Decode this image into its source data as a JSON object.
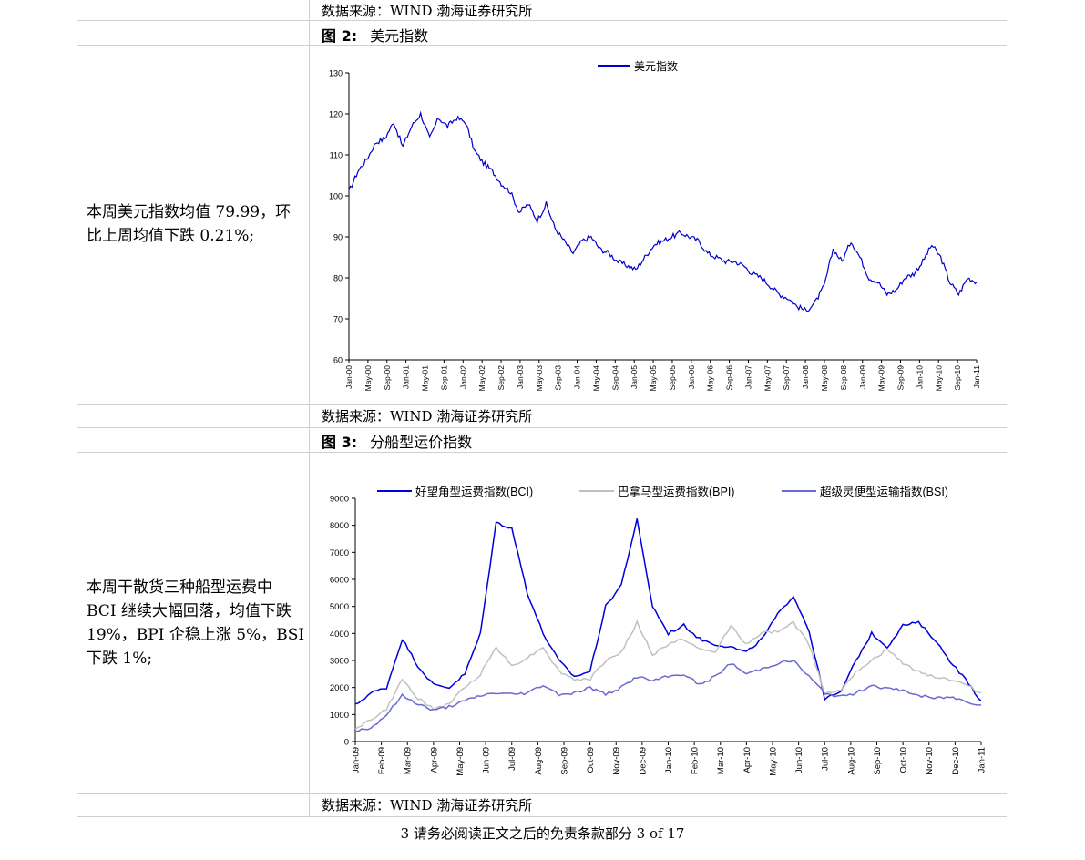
{
  "source_text": "数据来源：WIND 渤海证券研究所",
  "fig2": {
    "num": "图 2:",
    "title": "美元指数",
    "comment": "本周美元指数均值 79.99，环比上周均值下跌 0.21%;"
  },
  "fig3": {
    "num": "图 3:",
    "title": "分船型运价指数",
    "comment": "本周干散货三种船型运费中 BCI 继续大幅回落，均值下跌 19%，BPI 企稳上涨 5%，BSI 下跌 1%;"
  },
  "footer": "3 请务必阅读正文之后的免责条款部分     3 of 17",
  "chart_data": [
    {
      "type": "line",
      "series_color": "#0000cc",
      "ylim": [
        60,
        130
      ],
      "yticks": [
        60,
        70,
        80,
        90,
        100,
        110,
        120,
        130
      ],
      "xticks": [
        "Jan-00",
        "May-00",
        "Sep-00",
        "Jan-01",
        "May-01",
        "Sep-01",
        "Jan-02",
        "May-02",
        "Sep-02",
        "Jan-03",
        "May-03",
        "Sep-03",
        "Jan-04",
        "May-04",
        "Sep-04",
        "Jan-05",
        "May-05",
        "Sep-05",
        "Jan-06",
        "May-06",
        "Sep-06",
        "Jan-07",
        "May-07",
        "Sep-07",
        "Jan-08",
        "May-08",
        "Sep-08",
        "Jan-09",
        "May-09",
        "Sep-09",
        "Jan-10",
        "May-10",
        "Sep-10",
        "Jan-11"
      ],
      "series": [
        {
          "name": "美元指数",
          "color": "#0000cc",
          "values": [
            101,
            106,
            109,
            113,
            114,
            118,
            112,
            117,
            120,
            114,
            119,
            117,
            119,
            118,
            111,
            108,
            106,
            103,
            101,
            96,
            98,
            94,
            98,
            92,
            89,
            86,
            89,
            90,
            87,
            86,
            84,
            83,
            82,
            85,
            88,
            89,
            90,
            91,
            90,
            89,
            86,
            85,
            84,
            84,
            83,
            81,
            80,
            78,
            76,
            75,
            73,
            72,
            74,
            78,
            87,
            84,
            89,
            85,
            80,
            79,
            76,
            77,
            80,
            81,
            84,
            88,
            85,
            79,
            76,
            80,
            79
          ]
        }
      ]
    },
    {
      "type": "line",
      "ylim": [
        0,
        9000
      ],
      "yticks": [
        0,
        1000,
        2000,
        3000,
        4000,
        5000,
        6000,
        7000,
        8000,
        9000
      ],
      "xticks": [
        "Jan-09",
        "Feb-09",
        "Mar-09",
        "Apr-09",
        "May-09",
        "Jun-09",
        "Jul-09",
        "Aug-09",
        "Sep-09",
        "Oct-09",
        "Nov-09",
        "Dec-09",
        "Jan-10",
        "Feb-10",
        "Mar-10",
        "Apr-10",
        "May-10",
        "Jun-10",
        "Jul-10",
        "Aug-10",
        "Sep-10",
        "Oct-10",
        "Nov-10",
        "Dec-10",
        "Jan-11"
      ],
      "series": [
        {
          "name": "好望角型运费指数(BCI)",
          "color": "#0000dd",
          "values": [
            1350,
            1800,
            2000,
            3800,
            2800,
            2100,
            2000,
            2500,
            4000,
            8100,
            7900,
            5500,
            4000,
            3000,
            2400,
            2600,
            5000,
            5800,
            8200,
            5000,
            4000,
            4300,
            3800,
            3600,
            3500,
            3300,
            3800,
            4700,
            5400,
            4100,
            1600,
            1800,
            3000,
            4000,
            3500,
            4300,
            4400,
            3800,
            3000,
            2300,
            1500
          ]
        },
        {
          "name": "巴拿马型运费指数(BPI)",
          "color": "#c0c0c0",
          "values": [
            500,
            800,
            1200,
            2300,
            1600,
            1200,
            1400,
            2000,
            2500,
            3500,
            2800,
            3100,
            3500,
            2600,
            2300,
            2300,
            3000,
            3300,
            4400,
            3200,
            3600,
            3800,
            3400,
            3300,
            4300,
            3600,
            4000,
            4100,
            4400,
            3600,
            1800,
            1900,
            2600,
            3000,
            3400,
            2900,
            2600,
            2400,
            2300,
            2100,
            1800
          ]
        },
        {
          "name": "超级灵便型运输指数(BSI)",
          "color": "#6a6acf",
          "values": [
            400,
            500,
            1000,
            1700,
            1400,
            1150,
            1300,
            1500,
            1700,
            1800,
            1750,
            1800,
            2100,
            1750,
            1800,
            2000,
            1750,
            2000,
            2400,
            2250,
            2400,
            2500,
            2100,
            2400,
            2900,
            2500,
            2700,
            2900,
            3000,
            2400,
            1800,
            1650,
            1800,
            2100,
            1950,
            1900,
            1700,
            1600,
            1650,
            1500,
            1350
          ]
        }
      ]
    }
  ]
}
